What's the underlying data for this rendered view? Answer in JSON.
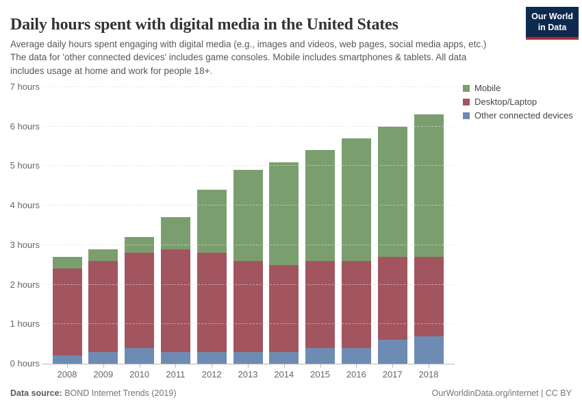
{
  "header": {
    "title": "Daily hours spent with digital media in the United States",
    "subtitle": "Average daily hours spent engaging with digital media (e.g., images and videos, web pages, social media apps, etc.) The data for 'other connected devices' includes game consoles. Mobile includes smartphones & tablets. All data includes usage at home and work for people 18+.",
    "logo": {
      "line1": "Our World",
      "line2": "in Data",
      "bg_color": "#0d2a4e",
      "accent_color": "#b02a33"
    }
  },
  "chart_data": {
    "type": "bar",
    "stacked": true,
    "title": "Daily hours spent with digital media in the United States",
    "xlabel": "",
    "ylabel": "hours",
    "ylim": [
      0,
      7
    ],
    "ytick_suffix": " hours",
    "grid": "horizontal-dashed",
    "legend_position": "right",
    "categories": [
      "2008",
      "2009",
      "2010",
      "2011",
      "2012",
      "2013",
      "2014",
      "2015",
      "2016",
      "2017",
      "2018"
    ],
    "series": [
      {
        "name": "Mobile",
        "color": "#7b9e6e",
        "values": [
          0.3,
          0.3,
          0.4,
          0.8,
          1.6,
          2.3,
          2.6,
          2.8,
          3.1,
          3.3,
          3.6
        ]
      },
      {
        "name": "Desktop/Laptop",
        "color": "#a2555f",
        "values": [
          2.2,
          2.3,
          2.4,
          2.6,
          2.5,
          2.3,
          2.2,
          2.2,
          2.2,
          2.1,
          2.0
        ]
      },
      {
        "name": "Other connected devices",
        "color": "#6e8cb3",
        "values": [
          0.2,
          0.3,
          0.4,
          0.3,
          0.3,
          0.3,
          0.3,
          0.4,
          0.4,
          0.6,
          0.7
        ]
      }
    ],
    "totals": [
      2.7,
      2.9,
      3.2,
      3.7,
      4.4,
      4.9,
      5.1,
      5.4,
      5.7,
      6.0,
      6.3
    ]
  },
  "footer": {
    "source_label": "Data source:",
    "source_text": "BOND Internet Trends (2019)",
    "credit": "OurWorldinData.org/internet | CC BY"
  }
}
